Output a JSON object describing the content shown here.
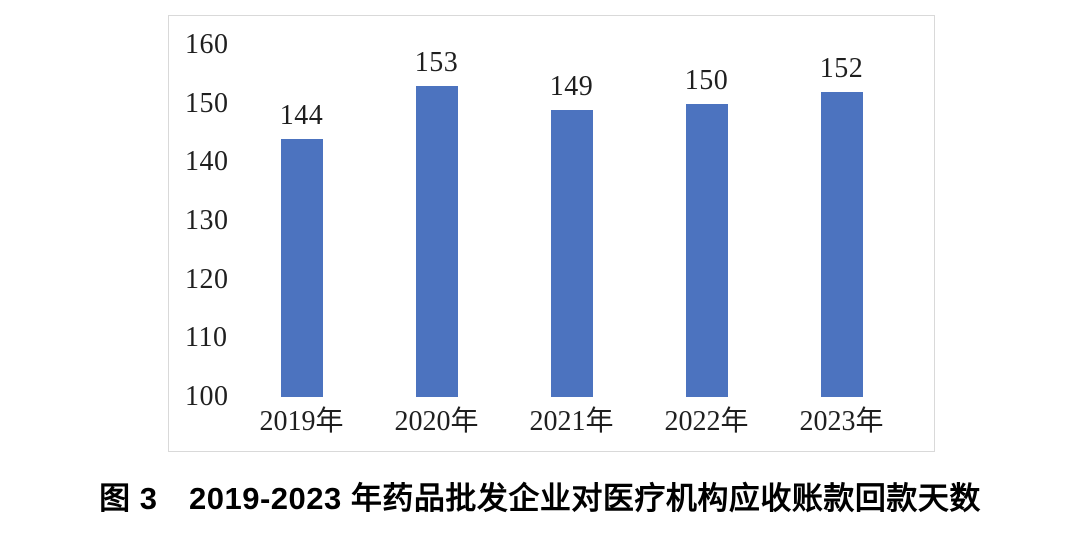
{
  "caption": "图 3　2019-2023 年药品批发企业对医疗机构应收账款回款天数",
  "chart_data": {
    "type": "bar",
    "title": "",
    "categories": [
      "2019年",
      "2020年",
      "2021年",
      "2022年",
      "2023年"
    ],
    "values": [
      144,
      153,
      149,
      150,
      152
    ],
    "xlabel": "",
    "ylabel": "",
    "ylim": [
      100,
      160
    ],
    "ytick_step": 10,
    "yticks": [
      100,
      110,
      120,
      130,
      140,
      150,
      160
    ],
    "bar_color": "#4C73BF",
    "text_color": "#1f1f1f",
    "frame_border_color": "#d9d9d9",
    "grid": false,
    "legend": "none",
    "data_labels": true
  }
}
